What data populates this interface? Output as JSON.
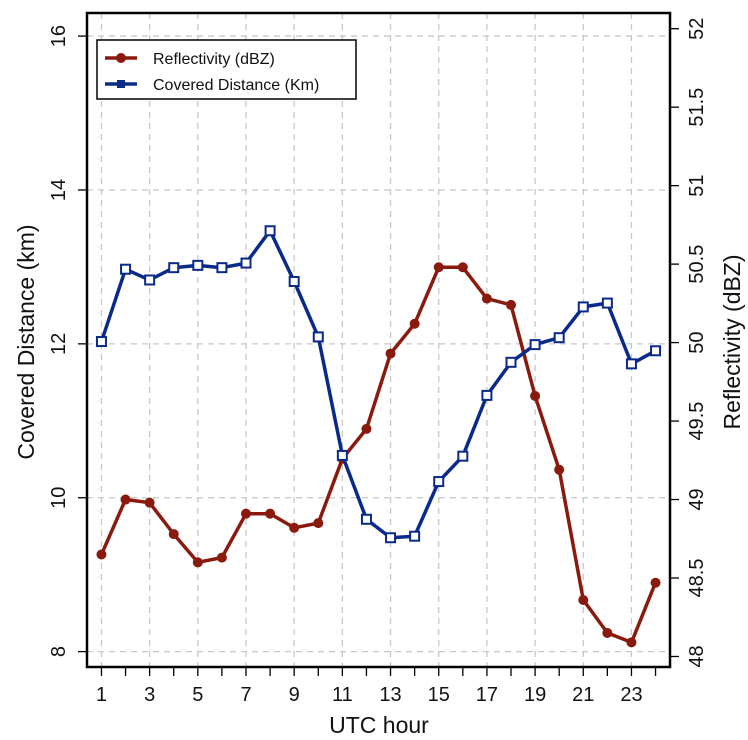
{
  "chart_data": {
    "type": "line",
    "title": "",
    "xlabel": "UTC hour",
    "ylabel_left": "Covered Distance (km)",
    "ylabel_right": "Reflectivity (dBZ)",
    "x": [
      1,
      2,
      3,
      4,
      5,
      6,
      7,
      8,
      9,
      10,
      11,
      12,
      13,
      14,
      15,
      16,
      17,
      18,
      19,
      20,
      21,
      22,
      23,
      24
    ],
    "x_ticks": [
      1,
      3,
      5,
      7,
      9,
      11,
      13,
      15,
      17,
      19,
      21,
      23
    ],
    "y_left_ticks": [
      8,
      10,
      12,
      14,
      16
    ],
    "y_right_ticks": [
      48,
      48.5,
      49,
      49.5,
      50,
      50.5,
      51,
      51.5,
      52
    ],
    "ylim_left": [
      7.8,
      16.3
    ],
    "ylim_right": [
      47.933,
      52.1
    ],
    "xlim": [
      0.4,
      24.6
    ],
    "grid": true,
    "legend_position": "top-left",
    "series": [
      {
        "name": "Reflectivity (dBZ)",
        "axis": "right",
        "color": "#8b1a0e",
        "marker": "filled-circle",
        "values": [
          48.65,
          49.0,
          48.98,
          48.78,
          48.6,
          48.63,
          48.91,
          48.91,
          48.82,
          48.85,
          49.26,
          49.45,
          49.93,
          50.12,
          50.48,
          50.48,
          50.28,
          50.24,
          49.66,
          49.19,
          48.36,
          48.15,
          48.09,
          48.47
        ]
      },
      {
        "name": "Covered Distance (Km)",
        "axis": "left",
        "color": "#0a2a8a",
        "marker": "open-square",
        "values": [
          12.03,
          12.97,
          12.83,
          12.99,
          13.02,
          12.99,
          13.05,
          13.47,
          12.81,
          12.09,
          10.55,
          9.72,
          9.48,
          9.5,
          10.21,
          10.54,
          11.33,
          11.76,
          11.99,
          12.08,
          12.48,
          12.53,
          11.74,
          11.91
        ]
      }
    ]
  }
}
